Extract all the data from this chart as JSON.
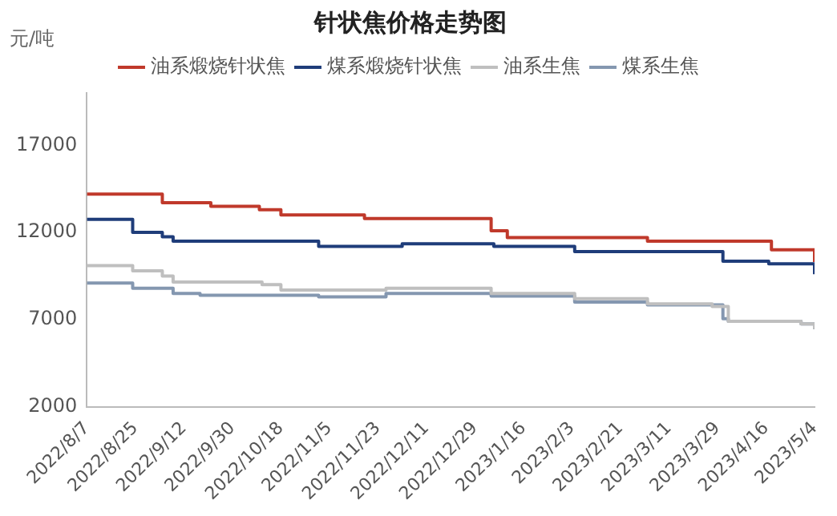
{
  "chart_data": {
    "type": "step",
    "title": "针状焦价格走势图",
    "ylabel": "元/吨",
    "xlim": [
      "2022-08-07",
      "2023-05-04"
    ],
    "xticks": [
      {
        "value": "2022-08-07",
        "label": "2022/8/7"
      },
      {
        "value": "2022-08-25",
        "label": "2022/8/25"
      },
      {
        "value": "2022-09-12",
        "label": "2022/9/12"
      },
      {
        "value": "2022-09-30",
        "label": "2022/9/30"
      },
      {
        "value": "2022-10-18",
        "label": "2022/10/18"
      },
      {
        "value": "2022-11-05",
        "label": "2022/11/5"
      },
      {
        "value": "2022-11-23",
        "label": "2022/11/23"
      },
      {
        "value": "2022-12-11",
        "label": "2022/12/11"
      },
      {
        "value": "2022-12-29",
        "label": "2022/12/29"
      },
      {
        "value": "2023-01-16",
        "label": "2023/1/16"
      },
      {
        "value": "2023-02-03",
        "label": "2023/2/3"
      },
      {
        "value": "2023-02-21",
        "label": "2023/2/21"
      },
      {
        "value": "2023-03-11",
        "label": "2023/3/11"
      },
      {
        "value": "2023-03-29",
        "label": "2023/3/29"
      },
      {
        "value": "2023-04-16",
        "label": "2023/4/16"
      },
      {
        "value": "2023-05-04",
        "label": "2023/5/4"
      }
    ],
    "ylim": [
      2000,
      20000
    ],
    "yticks": [
      2000,
      7000,
      12000,
      17000
    ],
    "grid": false,
    "legend": "top",
    "marker": "none",
    "series": [
      {
        "name": "油系煅烧针状焦",
        "color": "#c0392b",
        "x": [
          "2022-08-07",
          "2022-09-04",
          "2022-09-22",
          "2022-10-10",
          "2022-10-18",
          "2022-11-18",
          "2023-01-04",
          "2023-01-10",
          "2023-03-03",
          "2023-04-18",
          "2023-04-29",
          "2023-05-04"
        ],
        "values": [
          14200,
          13700,
          13500,
          13300,
          13000,
          12800,
          12100,
          11700,
          11500,
          11000,
          11000,
          10300
        ]
      },
      {
        "name": "煤系煅烧针状焦",
        "color": "#1f3d7a",
        "x": [
          "2022-08-07",
          "2022-08-24",
          "2022-09-04",
          "2022-09-08",
          "2022-11-01",
          "2022-12-02",
          "2023-01-05",
          "2023-02-04",
          "2023-03-31",
          "2023-04-17",
          "2023-04-29",
          "2023-05-04"
        ],
        "values": [
          12750,
          12000,
          11750,
          11500,
          11200,
          11350,
          11200,
          10900,
          10350,
          10200,
          10200,
          9600
        ]
      },
      {
        "name": "油系生焦",
        "color": "#bfbfbf",
        "x": [
          "2022-08-07",
          "2022-08-24",
          "2022-09-04",
          "2022-09-08",
          "2022-10-11",
          "2022-10-18",
          "2022-11-26",
          "2023-01-04",
          "2023-02-04",
          "2023-03-03",
          "2023-03-27",
          "2023-04-02",
          "2023-04-29",
          "2023-05-04"
        ],
        "values": [
          10100,
          9800,
          9500,
          9150,
          9000,
          8700,
          8800,
          8500,
          8200,
          7900,
          7750,
          6900,
          6750,
          6450
        ]
      },
      {
        "name": "煤系生焦",
        "color": "#8497b0",
        "x": [
          "2022-08-07",
          "2022-08-24",
          "2022-09-08",
          "2022-09-18",
          "2022-11-01",
          "2022-11-26",
          "2023-01-04",
          "2023-02-04",
          "2023-03-03",
          "2023-03-31",
          "2023-04-02",
          "2023-04-29",
          "2023-05-04"
        ],
        "values": [
          9100,
          8800,
          8500,
          8400,
          8300,
          8500,
          8350,
          8000,
          7850,
          7050,
          6900,
          6750,
          6450
        ]
      }
    ]
  }
}
